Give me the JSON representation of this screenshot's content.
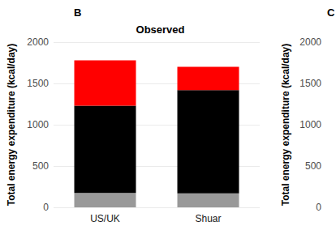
{
  "chart_data": [
    {
      "type": "bar",
      "panel": "B",
      "title": "Observed",
      "y_label": "Total energy expenditure (kcal/day)",
      "categories": [
        "US/UK",
        "Shuar"
      ],
      "series": [
        {
          "color": "#999999",
          "values": [
            175,
            170
          ]
        },
        {
          "color": "#000000",
          "values": [
            1055,
            1250
          ]
        },
        {
          "color": "#ff0000",
          "values": [
            550,
            280
          ]
        }
      ],
      "stacked": true,
      "ylim": [
        0,
        2000
      ],
      "yticks": [
        0,
        500,
        1000,
        1500,
        2000
      ],
      "grid": true
    },
    {
      "type": "bar",
      "panel": "C",
      "y_label": "Total energy expenditure (kcal/day)",
      "ylim": [
        0,
        2000
      ],
      "yticks": [
        0,
        500,
        1000,
        1500,
        2000
      ],
      "grid": false
    }
  ]
}
